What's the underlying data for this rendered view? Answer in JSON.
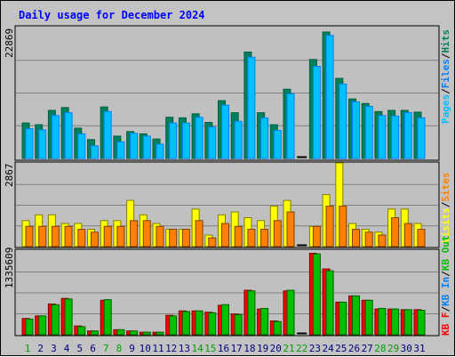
{
  "chart_data": {
    "type": "bar",
    "title": "Daily usage for December 2024",
    "categories": [
      "1",
      "2",
      "3",
      "4",
      "5",
      "6",
      "7",
      "8",
      "9",
      "10",
      "11",
      "12",
      "13",
      "14",
      "15",
      "16",
      "17",
      "18",
      "19",
      "20",
      "21",
      "22",
      "23",
      "24",
      "25",
      "26",
      "27",
      "28",
      "29",
      "30",
      "31"
    ],
    "weekend_days": [
      "1",
      "7",
      "8",
      "14",
      "15",
      "21",
      "22",
      "28",
      "29"
    ],
    "panels": [
      {
        "name": "hits-files-pages",
        "ymax": 22869,
        "ymax_label": "22869",
        "legend": [
          "Pages",
          "/",
          "Files",
          "/",
          "Hits"
        ],
        "series": [
          {
            "name": "Hits",
            "values": [
              6200,
              5900,
              8400,
              8900,
              5300,
              3300,
              9000,
              3900,
              4700,
              4300,
              3400,
              7200,
              7100,
              7800,
              6300,
              10100,
              8000,
              18600,
              8000,
              5900,
              12100,
              0,
              17300,
              22100,
              14000,
              10400,
              9600,
              8200,
              8400,
              8400,
              8100
            ]
          },
          {
            "name": "Files",
            "values": [
              5200,
              5000,
              7500,
              8000,
              4300,
              2200,
              8200,
              2900,
              4400,
              3900,
              2500,
              6200,
              6200,
              7200,
              5500,
              9300,
              6500,
              17700,
              7100,
              4900,
              11300,
              0,
              16100,
              21500,
              13000,
              9900,
              9100,
              7500,
              7400,
              8000,
              7100
            ]
          }
        ]
      },
      {
        "name": "visits-sites",
        "ymax": 2867,
        "ymax_label": "2867",
        "legend": [
          "Visits",
          "/",
          "Sites"
        ],
        "series": [
          {
            "name": "Visits",
            "values": [
              900,
              1100,
              1100,
              800,
              800,
              600,
              900,
              900,
              1600,
              1100,
              800,
              600,
              600,
              1300,
              400,
              1100,
              1200,
              1000,
              900,
              1400,
              1600,
              0,
              700,
              1800,
              2900,
              800,
              600,
              500,
              1300,
              1300,
              800
            ]
          },
          {
            "name": "Sites",
            "values": [
              700,
              700,
              700,
              700,
              600,
              500,
              700,
              700,
              900,
              900,
              700,
              600,
              600,
              900,
              300,
              800,
              700,
              600,
              600,
              900,
              1200,
              0,
              700,
              1400,
              1400,
              600,
              500,
              400,
              1000,
              800,
              600
            ]
          }
        ]
      },
      {
        "name": "kbytes",
        "ymax": 1335609,
        "ymax_label": "1335609",
        "legend": [
          "KB F",
          "/",
          "KB In",
          "/",
          "KB Out"
        ],
        "series": [
          {
            "name": "KB F",
            "values": [
              260000,
              300000,
              490000,
              580000,
              140000,
              60000,
              550000,
              80000,
              60000,
              40000,
              40000,
              310000,
              380000,
              380000,
              360000,
              470000,
              330000,
              710000,
              410000,
              220000,
              700000,
              0,
              1300000,
              1050000,
              520000,
              620000,
              550000,
              410000,
              410000,
              400000,
              400000
            ]
          },
          {
            "name": "KB Out",
            "values": [
              250000,
              300000,
              480000,
              570000,
              130000,
              60000,
              560000,
              80000,
              60000,
              40000,
              40000,
              300000,
              370000,
              380000,
              350000,
              480000,
              320000,
              700000,
              420000,
              210000,
              710000,
              0,
              1290000,
              1020000,
              520000,
              620000,
              550000,
              420000,
              410000,
              400000,
              390000
            ]
          }
        ]
      }
    ],
    "colors": {
      "hits": "#00805c",
      "files": "#0080ff",
      "files_fill": "#00c0ff",
      "pages": "#00c0ff",
      "visits": "#ffff00",
      "sites": "#ff8000",
      "kbf": "#ff0000",
      "kbin": "#0080ff",
      "kbout": "#00c000",
      "title": "#0000ff",
      "label_weekday": "#000080",
      "label_weekend": "#00a000",
      "panel_bg": "#c0c0c0",
      "frame_bg": "#c3c3c3"
    }
  }
}
